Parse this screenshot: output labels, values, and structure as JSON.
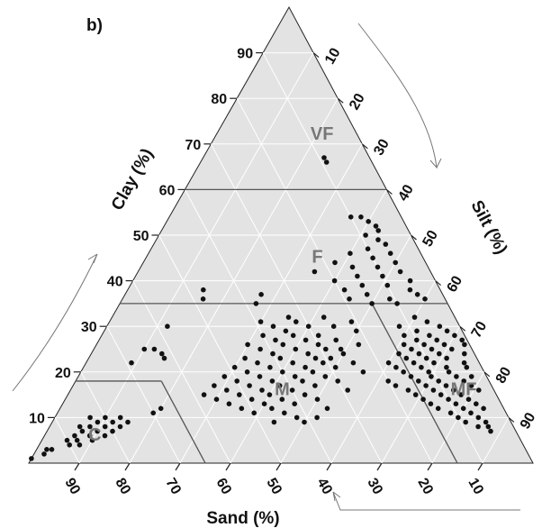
{
  "chart_data": {
    "type": "scatter",
    "subtype": "ternary",
    "panel_label": "b)",
    "axes": {
      "clay": {
        "title": "Clay (%)",
        "ticks": [
          10,
          20,
          30,
          40,
          50,
          60,
          70,
          80,
          90
        ]
      },
      "silt": {
        "title": "Silt (%)",
        "ticks": [
          10,
          20,
          30,
          40,
          50,
          60,
          70,
          80,
          90
        ]
      },
      "sand": {
        "title": "Sand (%)",
        "ticks": [
          10,
          20,
          30,
          40,
          50,
          60,
          70,
          80,
          90
        ]
      }
    },
    "grid": true,
    "background_color": "#e3e3e3",
    "grid_color": "#ffffff",
    "point_color": "#111111",
    "boundary_color": "#555555",
    "classes": [
      {
        "label": "VF",
        "clay": 72,
        "silt": 21
      },
      {
        "label": "F",
        "clay": 45,
        "silt": 34
      },
      {
        "label": "M",
        "clay": 16,
        "silt": 42
      },
      {
        "label": "MF",
        "clay": 16,
        "silt": 78
      },
      {
        "label": "C",
        "clay": 6,
        "silt": 10
      }
    ],
    "class_boundaries": [
      {
        "from": {
          "clay": 60,
          "silt": 0
        },
        "to": {
          "clay": 60,
          "silt": 40
        }
      },
      {
        "from": {
          "clay": 35,
          "silt": 0
        },
        "to": {
          "clay": 35,
          "silt": 65
        }
      },
      {
        "from": {
          "clay": 35,
          "silt": 50
        },
        "to": {
          "clay": 0,
          "silt": 85
        }
      },
      {
        "from": {
          "clay": 18,
          "silt": 0
        },
        "to": {
          "clay": 18,
          "silt": 17
        }
      },
      {
        "from": {
          "clay": 18,
          "silt": 17
        },
        "to": {
          "clay": 0,
          "silt": 35
        }
      }
    ],
    "points": [
      {
        "clay": 66,
        "silt": 25
      },
      {
        "clay": 67,
        "silt": 24
      },
      {
        "clay": 54,
        "silt": 36
      },
      {
        "clay": 54,
        "silt": 38
      },
      {
        "clay": 53,
        "silt": 40
      },
      {
        "clay": 52,
        "silt": 42
      },
      {
        "clay": 51,
        "silt": 43
      },
      {
        "clay": 50,
        "silt": 41
      },
      {
        "clay": 49,
        "silt": 44
      },
      {
        "clay": 48,
        "silt": 46
      },
      {
        "clay": 47,
        "silt": 43
      },
      {
        "clay": 46,
        "silt": 48
      },
      {
        "clay": 46,
        "silt": 40
      },
      {
        "clay": 45,
        "silt": 45
      },
      {
        "clay": 44,
        "silt": 38
      },
      {
        "clay": 44,
        "silt": 50
      },
      {
        "clay": 43,
        "silt": 42
      },
      {
        "clay": 43,
        "silt": 47
      },
      {
        "clay": 42,
        "silt": 35
      },
      {
        "clay": 42,
        "silt": 52
      },
      {
        "clay": 41,
        "silt": 44
      },
      {
        "clay": 41,
        "silt": 49
      },
      {
        "clay": 40,
        "silt": 40
      },
      {
        "clay": 40,
        "silt": 55
      },
      {
        "clay": 39,
        "silt": 46
      },
      {
        "clay": 39,
        "silt": 51
      },
      {
        "clay": 38,
        "silt": 43
      },
      {
        "clay": 38,
        "silt": 56
      },
      {
        "clay": 37,
        "silt": 48
      },
      {
        "clay": 37,
        "silt": 58
      },
      {
        "clay": 36,
        "silt": 45
      },
      {
        "clay": 36,
        "silt": 53
      },
      {
        "clay": 36,
        "silt": 60
      },
      {
        "clay": 35,
        "silt": 50
      },
      {
        "clay": 35,
        "silt": 55
      },
      {
        "clay": 38,
        "silt": 15
      },
      {
        "clay": 36,
        "silt": 16
      },
      {
        "clay": 37,
        "silt": 27
      },
      {
        "clay": 35,
        "silt": 27
      },
      {
        "clay": 30,
        "silt": 12
      },
      {
        "clay": 25,
        "silt": 10
      },
      {
        "clay": 25,
        "silt": 12
      },
      {
        "clay": 24,
        "silt": 14
      },
      {
        "clay": 23,
        "silt": 15
      },
      {
        "clay": 22,
        "silt": 9
      },
      {
        "clay": 32,
        "silt": 35
      },
      {
        "clay": 32,
        "silt": 42
      },
      {
        "clay": 31,
        "silt": 30
      },
      {
        "clay": 31,
        "silt": 37
      },
      {
        "clay": 31,
        "silt": 48
      },
      {
        "clay": 30,
        "silt": 33
      },
      {
        "clay": 30,
        "silt": 40
      },
      {
        "clay": 30,
        "silt": 45
      },
      {
        "clay": 29,
        "silt": 36
      },
      {
        "clay": 29,
        "silt": 50
      },
      {
        "clay": 28,
        "silt": 32
      },
      {
        "clay": 28,
        "silt": 38
      },
      {
        "clay": 28,
        "silt": 43
      },
      {
        "clay": 27,
        "silt": 35
      },
      {
        "clay": 27,
        "silt": 41
      },
      {
        "clay": 27,
        "silt": 47
      },
      {
        "clay": 26,
        "silt": 30
      },
      {
        "clay": 26,
        "silt": 37
      },
      {
        "clay": 26,
        "silt": 44
      },
      {
        "clay": 26,
        "silt": 52
      },
      {
        "clay": 25,
        "silt": 33
      },
      {
        "clay": 25,
        "silt": 40
      },
      {
        "clay": 25,
        "silt": 46
      },
      {
        "clay": 25,
        "silt": 49
      },
      {
        "clay": 24,
        "silt": 36
      },
      {
        "clay": 24,
        "silt": 43
      },
      {
        "clay": 24,
        "silt": 50
      },
      {
        "clay": 23,
        "silt": 31
      },
      {
        "clay": 23,
        "silt": 38
      },
      {
        "clay": 23,
        "silt": 45
      },
      {
        "clay": 23,
        "silt": 48
      },
      {
        "clay": 22,
        "silt": 34
      },
      {
        "clay": 22,
        "silt": 41
      },
      {
        "clay": 22,
        "silt": 47
      },
      {
        "clay": 22,
        "silt": 53
      },
      {
        "clay": 21,
        "silt": 30
      },
      {
        "clay": 21,
        "silt": 37
      },
      {
        "clay": 21,
        "silt": 44
      },
      {
        "clay": 21,
        "silt": 50
      },
      {
        "clay": 20,
        "silt": 33
      },
      {
        "clay": 20,
        "silt": 40
      },
      {
        "clay": 20,
        "silt": 46
      },
      {
        "clay": 20,
        "silt": 56
      },
      {
        "clay": 19,
        "silt": 29
      },
      {
        "clay": 19,
        "silt": 36
      },
      {
        "clay": 19,
        "silt": 43
      },
      {
        "clay": 19,
        "silt": 49
      },
      {
        "clay": 18,
        "silt": 32
      },
      {
        "clay": 18,
        "silt": 39
      },
      {
        "clay": 18,
        "silt": 45
      },
      {
        "clay": 18,
        "silt": 52
      },
      {
        "clay": 17,
        "silt": 28
      },
      {
        "clay": 17,
        "silt": 35
      },
      {
        "clay": 17,
        "silt": 41
      },
      {
        "clay": 17,
        "silt": 48
      },
      {
        "clay": 16,
        "silt": 31
      },
      {
        "clay": 16,
        "silt": 38
      },
      {
        "clay": 16,
        "silt": 44
      },
      {
        "clay": 16,
        "silt": 55
      },
      {
        "clay": 15,
        "silt": 27
      },
      {
        "clay": 15,
        "silt": 34
      },
      {
        "clay": 15,
        "silt": 40
      },
      {
        "clay": 15,
        "silt": 47
      },
      {
        "clay": 14,
        "silt": 30
      },
      {
        "clay": 14,
        "silt": 37
      },
      {
        "clay": 14,
        "silt": 43
      },
      {
        "clay": 14,
        "silt": 50
      },
      {
        "clay": 13,
        "silt": 33
      },
      {
        "clay": 13,
        "silt": 40
      },
      {
        "clay": 13,
        "silt": 46
      },
      {
        "clay": 12,
        "silt": 36
      },
      {
        "clay": 12,
        "silt": 42
      },
      {
        "clay": 12,
        "silt": 53
      },
      {
        "clay": 11,
        "silt": 39
      },
      {
        "clay": 11,
        "silt": 45
      },
      {
        "clay": 10,
        "silt": 48
      },
      {
        "clay": 10,
        "silt": 52
      },
      {
        "clay": 9,
        "silt": 44
      },
      {
        "clay": 9,
        "silt": 50
      },
      {
        "clay": 12,
        "silt": 20
      },
      {
        "clay": 11,
        "silt": 19
      },
      {
        "clay": 32,
        "silt": 60
      },
      {
        "clay": 31,
        "silt": 63
      },
      {
        "clay": 30,
        "silt": 58
      },
      {
        "clay": 30,
        "silt": 66
      },
      {
        "clay": 29,
        "silt": 62
      },
      {
        "clay": 29,
        "silt": 68
      },
      {
        "clay": 28,
        "silt": 60
      },
      {
        "clay": 28,
        "silt": 65
      },
      {
        "clay": 28,
        "silt": 70
      },
      {
        "clay": 27,
        "silt": 63
      },
      {
        "clay": 27,
        "silt": 67
      },
      {
        "clay": 27,
        "silt": 72
      },
      {
        "clay": 26,
        "silt": 61
      },
      {
        "clay": 26,
        "silt": 65
      },
      {
        "clay": 26,
        "silt": 69
      },
      {
        "clay": 26,
        "silt": 73
      },
      {
        "clay": 25,
        "silt": 63
      },
      {
        "clay": 25,
        "silt": 67
      },
      {
        "clay": 25,
        "silt": 71
      },
      {
        "clay": 24,
        "silt": 61
      },
      {
        "clay": 24,
        "silt": 65
      },
      {
        "clay": 24,
        "silt": 69
      },
      {
        "clay": 24,
        "silt": 74
      },
      {
        "clay": 23,
        "silt": 63
      },
      {
        "clay": 23,
        "silt": 67
      },
      {
        "clay": 23,
        "silt": 71
      },
      {
        "clay": 22,
        "silt": 60
      },
      {
        "clay": 22,
        "silt": 65
      },
      {
        "clay": 22,
        "silt": 69
      },
      {
        "clay": 22,
        "silt": 75
      },
      {
        "clay": 21,
        "silt": 62
      },
      {
        "clay": 21,
        "silt": 67
      },
      {
        "clay": 21,
        "silt": 72
      },
      {
        "clay": 21,
        "silt": 76
      },
      {
        "clay": 20,
        "silt": 64
      },
      {
        "clay": 20,
        "silt": 69
      },
      {
        "clay": 20,
        "silt": 73
      },
      {
        "clay": 19,
        "silt": 66
      },
      {
        "clay": 19,
        "silt": 70
      },
      {
        "clay": 19,
        "silt": 75
      },
      {
        "clay": 19,
        "silt": 78
      },
      {
        "clay": 18,
        "silt": 62
      },
      {
        "clay": 18,
        "silt": 68
      },
      {
        "clay": 18,
        "silt": 72
      },
      {
        "clay": 18,
        "silt": 77
      },
      {
        "clay": 17,
        "silt": 64
      },
      {
        "clay": 17,
        "silt": 70
      },
      {
        "clay": 17,
        "silt": 74
      },
      {
        "clay": 17,
        "silt": 79
      },
      {
        "clay": 16,
        "silt": 67
      },
      {
        "clay": 16,
        "silt": 72
      },
      {
        "clay": 16,
        "silt": 76
      },
      {
        "clay": 16,
        "silt": 81
      },
      {
        "clay": 15,
        "silt": 69
      },
      {
        "clay": 15,
        "silt": 74
      },
      {
        "clay": 15,
        "silt": 78
      },
      {
        "clay": 14,
        "silt": 71
      },
      {
        "clay": 14,
        "silt": 76
      },
      {
        "clay": 14,
        "silt": 80
      },
      {
        "clay": 13,
        "silt": 73
      },
      {
        "clay": 13,
        "silt": 78
      },
      {
        "clay": 13,
        "silt": 82
      },
      {
        "clay": 12,
        "silt": 75
      },
      {
        "clay": 12,
        "silt": 80
      },
      {
        "clay": 12,
        "silt": 84
      },
      {
        "clay": 11,
        "silt": 78
      },
      {
        "clay": 11,
        "silt": 82
      },
      {
        "clay": 10,
        "silt": 80
      },
      {
        "clay": 10,
        "silt": 84
      },
      {
        "clay": 9,
        "silt": 82
      },
      {
        "clay": 9,
        "silt": 86
      },
      {
        "clay": 8,
        "silt": 85
      },
      {
        "clay": 8,
        "silt": 87
      },
      {
        "clay": 7,
        "silt": 88
      },
      {
        "clay": 10,
        "silt": 7
      },
      {
        "clay": 10,
        "silt": 10
      },
      {
        "clay": 10,
        "silt": 13
      },
      {
        "clay": 9,
        "silt": 9
      },
      {
        "clay": 9,
        "silt": 12
      },
      {
        "clay": 9,
        "silt": 15
      },
      {
        "clay": 8,
        "silt": 6
      },
      {
        "clay": 8,
        "silt": 8
      },
      {
        "clay": 8,
        "silt": 11
      },
      {
        "clay": 8,
        "silt": 14
      },
      {
        "clay": 7,
        "silt": 7
      },
      {
        "clay": 7,
        "silt": 10
      },
      {
        "clay": 7,
        "silt": 13
      },
      {
        "clay": 6,
        "silt": 6
      },
      {
        "clay": 6,
        "silt": 9
      },
      {
        "clay": 6,
        "silt": 12
      },
      {
        "clay": 5,
        "silt": 7
      },
      {
        "clay": 5,
        "silt": 10
      },
      {
        "clay": 5,
        "silt": 5
      },
      {
        "clay": 4,
        "silt": 6
      },
      {
        "clay": 4,
        "silt": 8
      },
      {
        "clay": 3,
        "silt": 3
      },
      {
        "clay": 3,
        "silt": 2
      },
      {
        "clay": 2,
        "silt": 2
      },
      {
        "clay": 1,
        "silt": 0
      }
    ]
  }
}
